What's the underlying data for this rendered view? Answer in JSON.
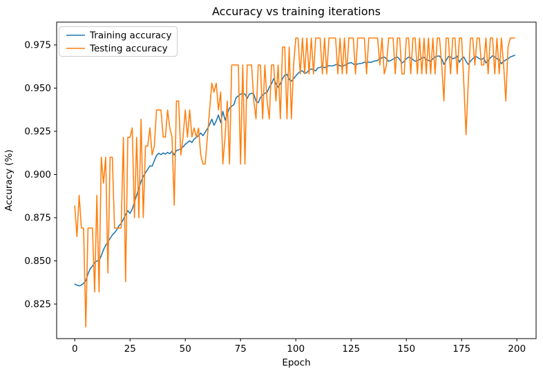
{
  "figure": {
    "title": "Accuracy vs training iterations",
    "xlabel": "Epoch",
    "ylabel": "Accuracy (%)"
  },
  "chart_data": {
    "type": "line",
    "title": "Accuracy vs training iterations",
    "xlabel": "Epoch",
    "ylabel": "Accuracy (%)",
    "grid": false,
    "legend_position": "upper-left",
    "x_ticks": [
      0,
      25,
      50,
      75,
      100,
      125,
      150,
      175,
      200
    ],
    "y_ticks": [
      0.975,
      0.95,
      0.925,
      0.9,
      0.875,
      0.85,
      0.825
    ],
    "xlim": [
      -8.2,
      208.7
    ],
    "ylim": [
      0.805,
      0.9882
    ],
    "epochs": 200,
    "x_note": "x = epoch index 0..199",
    "series": [
      {
        "name": "Training accuracy",
        "color": "#1f77b4",
        "values": [
          0.8365,
          0.836,
          0.8355,
          0.836,
          0.837,
          0.8385,
          0.8425,
          0.8455,
          0.847,
          0.849,
          0.85,
          0.85,
          0.853,
          0.8565,
          0.859,
          0.861,
          0.863,
          0.865,
          0.8663,
          0.868,
          0.8703,
          0.8717,
          0.8741,
          0.877,
          0.879,
          0.8775,
          0.88,
          0.884,
          0.888,
          0.892,
          0.896,
          0.899,
          0.901,
          0.903,
          0.905,
          0.9048,
          0.908,
          0.911,
          0.9123,
          0.9115,
          0.9125,
          0.9118,
          0.9128,
          0.912,
          0.9135,
          0.9113,
          0.914,
          0.9142,
          0.915,
          0.916,
          0.9175,
          0.9185,
          0.9195,
          0.9185,
          0.9205,
          0.9215,
          0.9225,
          0.924,
          0.9225,
          0.9245,
          0.9265,
          0.929,
          0.932,
          0.9285,
          0.931,
          0.9345,
          0.93,
          0.9365,
          0.9315,
          0.935,
          0.9385,
          0.9395,
          0.9405,
          0.9445,
          0.9455,
          0.9465,
          0.947,
          0.9465,
          0.944,
          0.9465,
          0.947,
          0.9465,
          0.9425,
          0.9415,
          0.9445,
          0.946,
          0.947,
          0.9475,
          0.9505,
          0.9525,
          0.9555,
          0.9525,
          0.9505,
          0.9525,
          0.9555,
          0.9575,
          0.958,
          0.955,
          0.954,
          0.9555,
          0.9571,
          0.9585,
          0.9597,
          0.96,
          0.9585,
          0.959,
          0.9605,
          0.9611,
          0.9605,
          0.96,
          0.9617,
          0.962,
          0.9624,
          0.9618,
          0.9625,
          0.963,
          0.9628,
          0.963,
          0.9635,
          0.9637,
          0.963,
          0.9624,
          0.9632,
          0.964,
          0.9644,
          0.9648,
          0.964,
          0.9633,
          0.964,
          0.9642,
          0.9644,
          0.965,
          0.9645,
          0.9651,
          0.9648,
          0.9655,
          0.9657,
          0.966,
          0.967,
          0.9675,
          0.968,
          0.967,
          0.9655,
          0.966,
          0.9668,
          0.9675,
          0.968,
          0.9665,
          0.9645,
          0.9655,
          0.967,
          0.968,
          0.9675,
          0.9665,
          0.9655,
          0.966,
          0.9665,
          0.9675,
          0.9678,
          0.9665,
          0.966,
          0.9655,
          0.967,
          0.968,
          0.9685,
          0.9685,
          0.967,
          0.9637,
          0.966,
          0.9683,
          0.968,
          0.967,
          0.9675,
          0.9685,
          0.965,
          0.967,
          0.968,
          0.9655,
          0.9637,
          0.9655,
          0.967,
          0.9683,
          0.968,
          0.967,
          0.9665,
          0.9675,
          0.9645,
          0.966,
          0.9675,
          0.9687,
          0.968,
          0.967,
          0.9665,
          0.9641,
          0.9655,
          0.9663,
          0.967,
          0.968,
          0.9685,
          0.969
        ]
      },
      {
        "name": "Testing accuracy",
        "color": "#ff7f0e",
        "values": [
          0.8818,
          0.864,
          0.888,
          0.869,
          0.869,
          0.8118,
          0.869,
          0.869,
          0.869,
          0.832,
          0.888,
          0.832,
          0.91,
          0.895,
          0.91,
          0.843,
          0.91,
          0.91,
          0.869,
          0.869,
          0.869,
          0.869,
          0.9215,
          0.838,
          0.9215,
          0.9215,
          0.927,
          0.875,
          0.9215,
          0.875,
          0.932,
          0.875,
          0.9165,
          0.9165,
          0.927,
          0.9113,
          0.9165,
          0.9373,
          0.9373,
          0.9373,
          0.9217,
          0.9217,
          0.9373,
          0.9269,
          0.9217,
          0.8822,
          0.9425,
          0.9425,
          0.9113,
          0.9217,
          0.9373,
          0.9217,
          0.9373,
          0.9217,
          0.9269,
          0.9217,
          0.9269,
          0.9113,
          0.9061,
          0.9061,
          0.9217,
          0.9373,
          0.9529,
          0.9477,
          0.9529,
          0.9373,
          0.9477,
          0.9061,
          0.9217,
          0.9425,
          0.9061,
          0.9634,
          0.9634,
          0.9634,
          0.9634,
          0.9061,
          0.9634,
          0.9061,
          0.9634,
          0.9634,
          0.9634,
          0.9425,
          0.9322,
          0.9634,
          0.9634,
          0.9322,
          0.9634,
          0.9425,
          0.9322,
          0.9634,
          0.9634,
          0.9425,
          0.9634,
          0.9322,
          0.9738,
          0.9738,
          0.9322,
          0.9738,
          0.9322,
          0.9634,
          0.979,
          0.979,
          0.9582,
          0.979,
          0.9582,
          0.979,
          0.9582,
          0.979,
          0.9582,
          0.979,
          0.979,
          0.979,
          0.9582,
          0.979,
          0.9582,
          0.979,
          0.979,
          0.979,
          0.979,
          0.9582,
          0.979,
          0.9582,
          0.979,
          0.9582,
          0.979,
          0.979,
          0.979,
          0.9582,
          0.979,
          0.979,
          0.979,
          0.979,
          0.9582,
          0.979,
          0.979,
          0.979,
          0.979,
          0.979,
          0.9634,
          0.979,
          0.9582,
          0.9634,
          0.979,
          0.979,
          0.979,
          0.9582,
          0.979,
          0.979,
          0.9582,
          0.9582,
          0.979,
          0.979,
          0.9582,
          0.979,
          0.979,
          0.9582,
          0.979,
          0.9582,
          0.979,
          0.9582,
          0.979,
          0.9582,
          0.979,
          0.9582,
          0.979,
          0.979,
          0.9634,
          0.9425,
          0.979,
          0.979,
          0.9582,
          0.979,
          0.979,
          0.9582,
          0.979,
          0.979,
          0.9529,
          0.923,
          0.9529,
          0.979,
          0.979,
          0.9634,
          0.979,
          0.979,
          0.9634,
          0.9634,
          0.979,
          0.9582,
          0.979,
          0.979,
          0.9582,
          0.979,
          0.9582,
          0.979,
          0.9634,
          0.9425,
          0.9738,
          0.979,
          0.979,
          0.979
        ]
      }
    ]
  }
}
